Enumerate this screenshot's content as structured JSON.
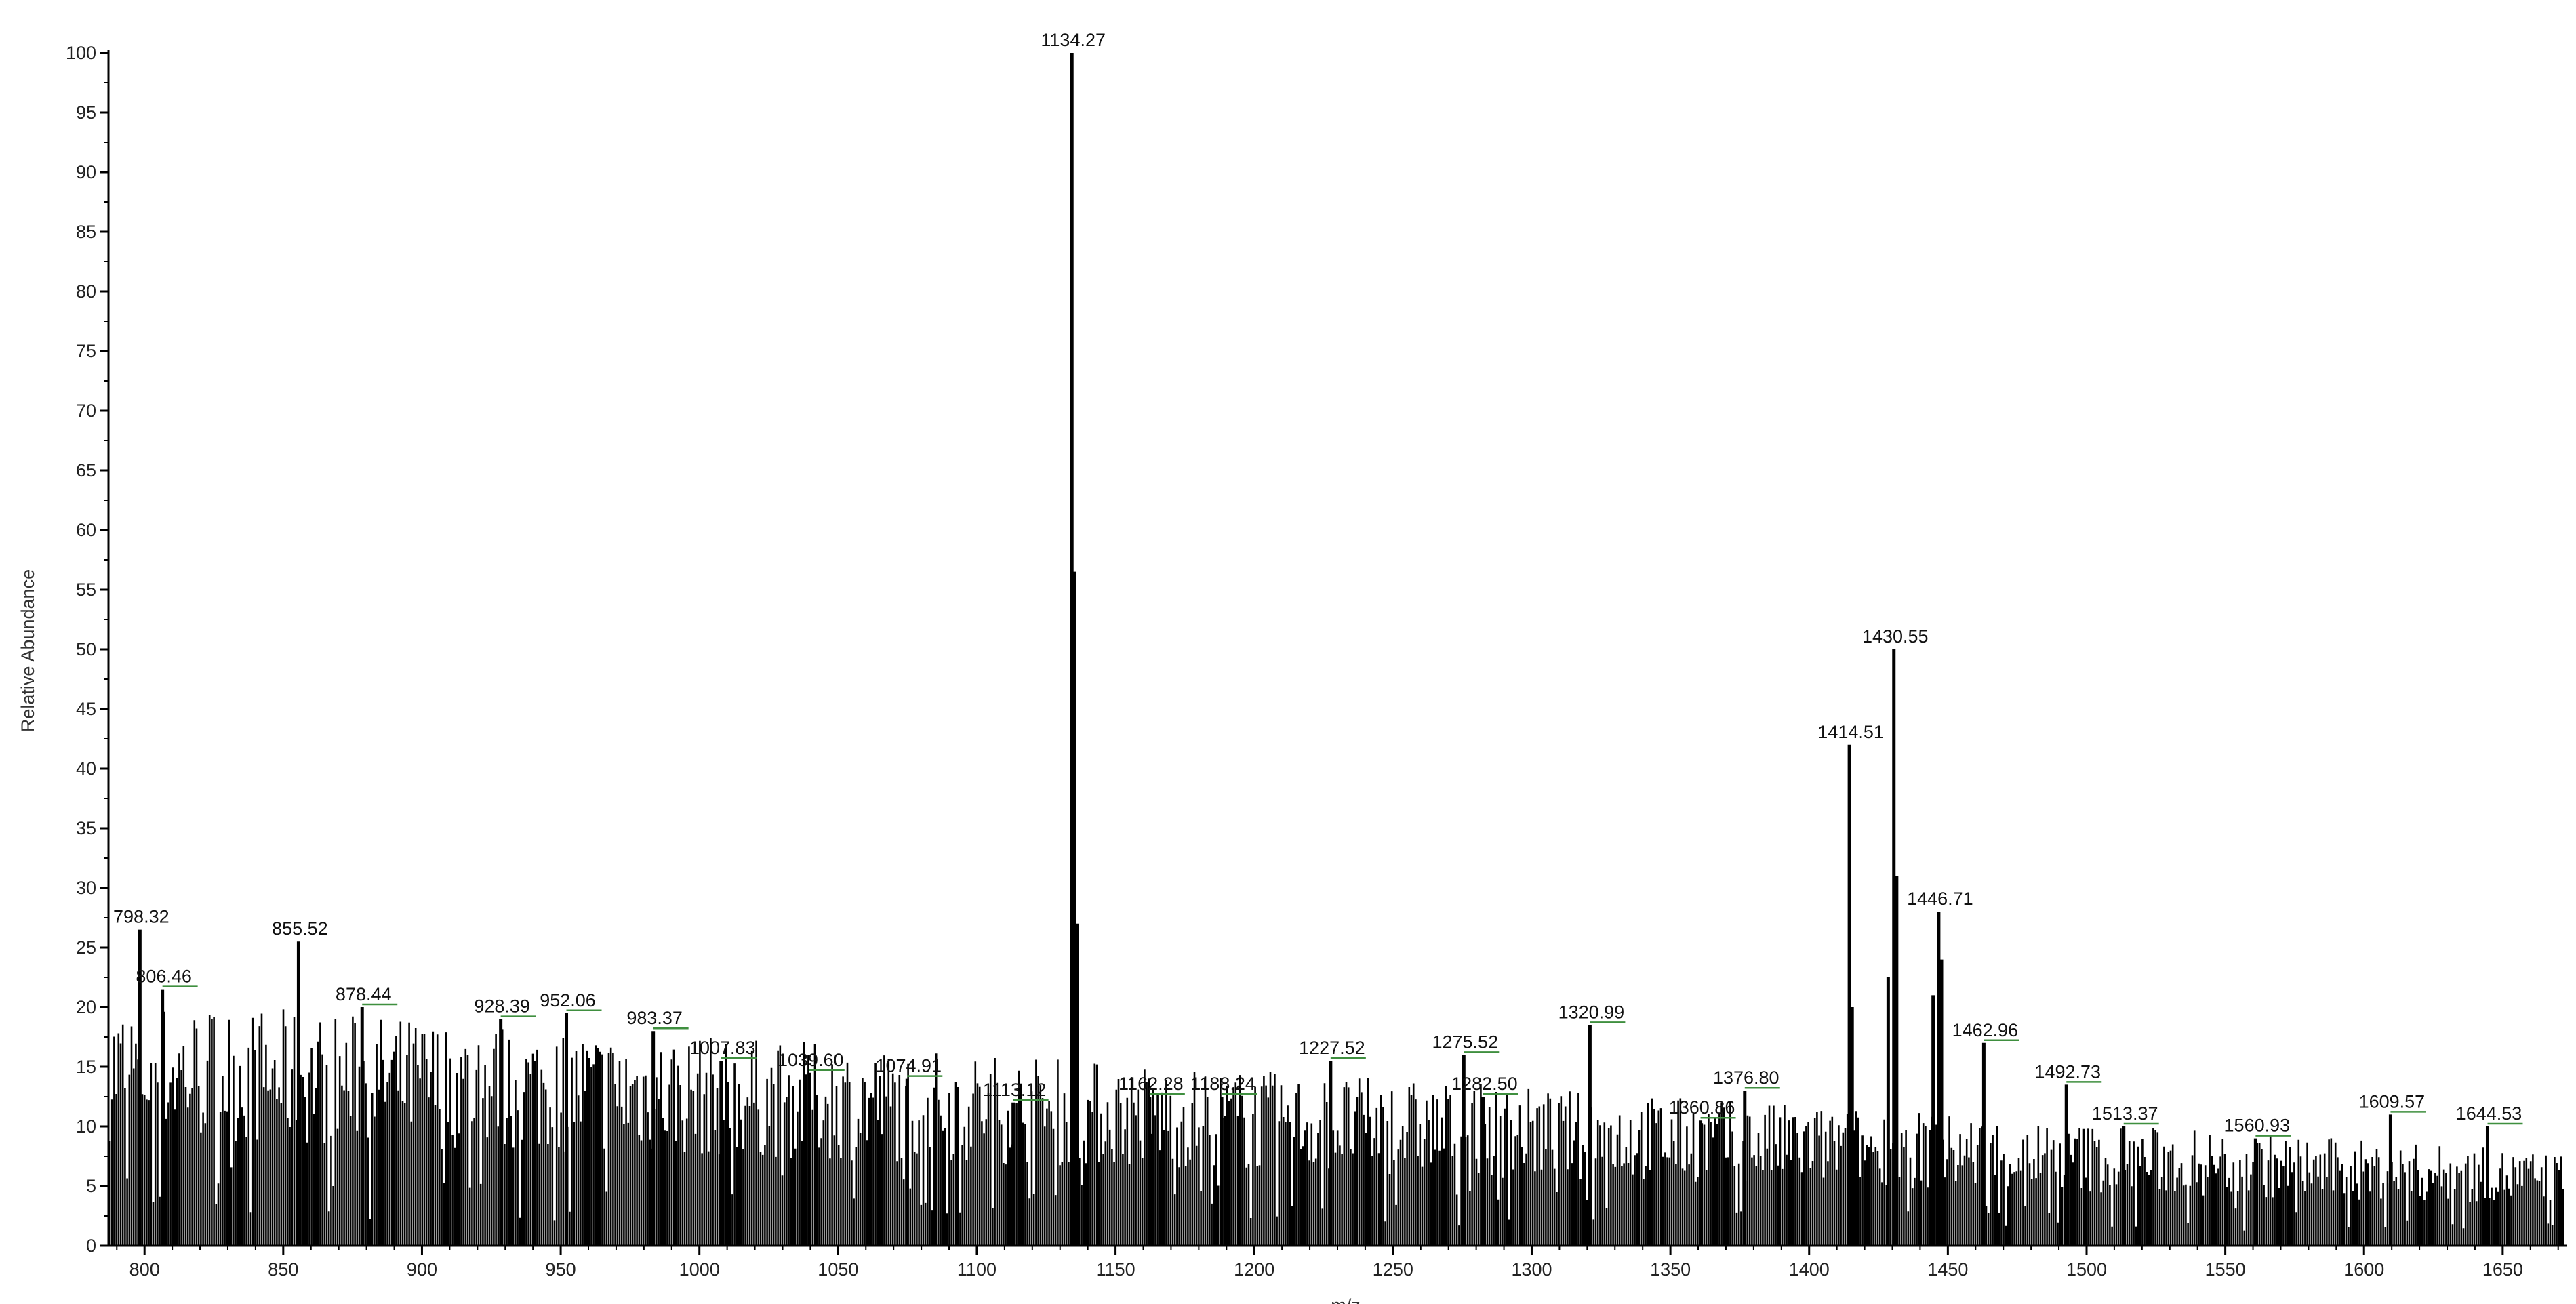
{
  "chart_data": {
    "type": "bar",
    "title": "",
    "ylabel": "Relative Abundance",
    "xlabel": "m/z",
    "xlim": [
      787,
      1673
    ],
    "ylim": [
      0,
      100
    ],
    "x_ticks": [
      800,
      850,
      900,
      950,
      1000,
      1050,
      1100,
      1150,
      1200,
      1250,
      1300,
      1350,
      1400,
      1450,
      1500,
      1550,
      1600,
      1650
    ],
    "y_ticks": [
      0,
      5,
      10,
      15,
      20,
      25,
      30,
      35,
      40,
      45,
      50,
      55,
      60,
      65,
      70,
      75,
      80,
      85,
      90,
      95,
      100
    ],
    "grid": false,
    "baseline_noise_level_percent": {
      "low_mz": 16,
      "high_mz": 6
    },
    "labeled_peaks": [
      {
        "label": "798.32",
        "mz": 798.32,
        "abundance": 26.5
      },
      {
        "label": "806.46",
        "mz": 806.46,
        "abundance": 21.5
      },
      {
        "label": "855.52",
        "mz": 855.52,
        "abundance": 25.5
      },
      {
        "label": "878.44",
        "mz": 878.44,
        "abundance": 20.0
      },
      {
        "label": "928.39",
        "mz": 928.39,
        "abundance": 19.0
      },
      {
        "label": "952.06",
        "mz": 952.06,
        "abundance": 19.5
      },
      {
        "label": "983.37",
        "mz": 983.37,
        "abundance": 18.0
      },
      {
        "label": "1007.83",
        "mz": 1007.83,
        "abundance": 15.5
      },
      {
        "label": "1039.60",
        "mz": 1039.6,
        "abundance": 14.5
      },
      {
        "label": "1074.91",
        "mz": 1074.91,
        "abundance": 14.0
      },
      {
        "label": "1113.12",
        "mz": 1113.12,
        "abundance": 12.0
      },
      {
        "label": "1134.27",
        "mz": 1134.27,
        "abundance": 100
      },
      {
        "label": "1162.28",
        "mz": 1162.28,
        "abundance": 12.5
      },
      {
        "label": "1188.24",
        "mz": 1188.24,
        "abundance": 12.5
      },
      {
        "label": "1227.52",
        "mz": 1227.52,
        "abundance": 15.5
      },
      {
        "label": "1275.52",
        "mz": 1275.52,
        "abundance": 16.0
      },
      {
        "label": "1282.50",
        "mz": 1282.5,
        "abundance": 12.5
      },
      {
        "label": "1320.99",
        "mz": 1320.99,
        "abundance": 18.5
      },
      {
        "label": "1360.86",
        "mz": 1360.86,
        "abundance": 10.5
      },
      {
        "label": "1376.80",
        "mz": 1376.8,
        "abundance": 13.0
      },
      {
        "label": "1414.51",
        "mz": 1414.51,
        "abundance": 42.0
      },
      {
        "label": "1430.55",
        "mz": 1430.55,
        "abundance": 50.0
      },
      {
        "label": "1446.71",
        "mz": 1446.71,
        "abundance": 28.0
      },
      {
        "label": "1462.96",
        "mz": 1462.96,
        "abundance": 17.0
      },
      {
        "label": "1492.73",
        "mz": 1492.73,
        "abundance": 13.5
      },
      {
        "label": "1513.37",
        "mz": 1513.37,
        "abundance": 10.0
      },
      {
        "label": "1560.93",
        "mz": 1560.93,
        "abundance": 9.0
      },
      {
        "label": "1609.57",
        "mz": 1609.57,
        "abundance": 11.0
      },
      {
        "label": "1644.53",
        "mz": 1644.53,
        "abundance": 10.0
      }
    ],
    "unlabeled_peaks": [
      {
        "mz": 1135.27,
        "abundance": 56.5
      },
      {
        "mz": 1136.27,
        "abundance": 27.0
      },
      {
        "mz": 1415.51,
        "abundance": 20.0
      },
      {
        "mz": 1431.55,
        "abundance": 31.0
      },
      {
        "mz": 1428.5,
        "abundance": 22.5
      },
      {
        "mz": 1447.71,
        "abundance": 24.0
      },
      {
        "mz": 1444.7,
        "abundance": 21.0
      }
    ]
  }
}
